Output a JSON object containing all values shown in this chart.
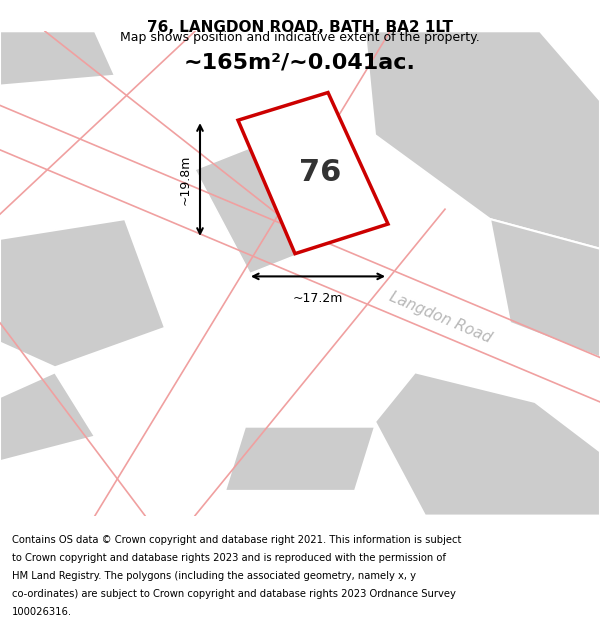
{
  "title_line1": "76, LANGDON ROAD, BATH, BA2 1LT",
  "title_line2": "Map shows position and indicative extent of the property.",
  "area_text": "~165m²/~0.041ac.",
  "number_label": "76",
  "width_label": "~17.2m",
  "height_label": "~19.8m",
  "road_label": "Langdon Road",
  "footer_lines": [
    "Contains OS data © Crown copyright and database right 2021. This information is subject",
    "to Crown copyright and database rights 2023 and is reproduced with the permission of",
    "HM Land Registry. The polygons (including the associated geometry, namely x, y",
    "co-ordinates) are subject to Crown copyright and database rights 2023 Ordnance Survey",
    "100026316."
  ],
  "bg_color": "#ffffff",
  "map_bg_color": "#f5f5f5",
  "gray_poly_color": "#cccccc",
  "red_poly_color": "#cc0000",
  "pink_line_color": "#f0a0a0",
  "road_text_color": "#b8b8b8",
  "title_color": "#000000",
  "footer_color": "#000000"
}
